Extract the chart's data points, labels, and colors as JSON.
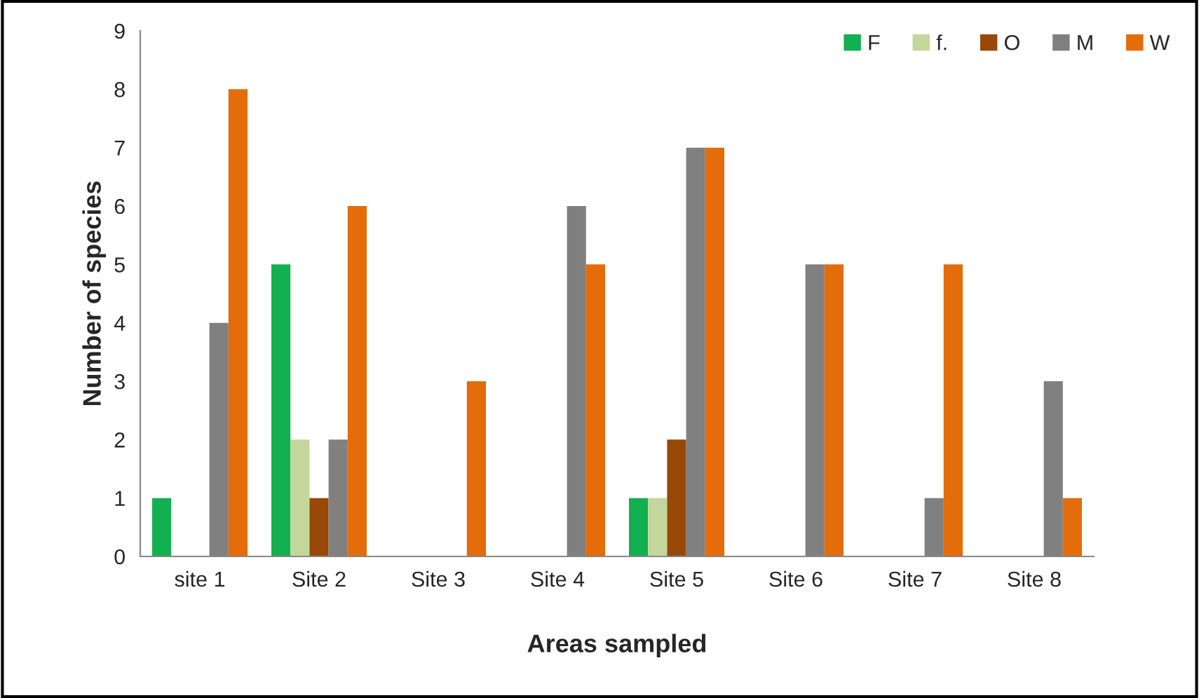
{
  "chart_data": {
    "type": "bar",
    "xlabel": "Areas sampled",
    "ylabel": "Number of species",
    "categories": [
      "site 1",
      "Site 2",
      "Site 3",
      "Site 4",
      "Site 5",
      "Site 6",
      "Site 7",
      "Site 8"
    ],
    "series": [
      {
        "name": "F",
        "color": "#12b050",
        "values": [
          1,
          5,
          0,
          0,
          1,
          0,
          0,
          0
        ]
      },
      {
        "name": "f.",
        "color": "#c3d69b",
        "values": [
          0,
          2,
          0,
          0,
          1,
          0,
          0,
          0
        ]
      },
      {
        "name": "O",
        "color": "#984807",
        "values": [
          0,
          1,
          0,
          0,
          2,
          0,
          0,
          0
        ]
      },
      {
        "name": "M",
        "color": "#808080",
        "values": [
          4,
          2,
          0,
          6,
          7,
          5,
          1,
          3
        ]
      },
      {
        "name": "W",
        "color": "#e46c0a",
        "values": [
          8,
          6,
          3,
          5,
          7,
          5,
          5,
          1
        ]
      }
    ],
    "ylim": [
      0,
      9
    ],
    "yticks": [
      0,
      1,
      2,
      3,
      4,
      5,
      6,
      7,
      8,
      9
    ],
    "grid": false,
    "legend": "top right"
  }
}
